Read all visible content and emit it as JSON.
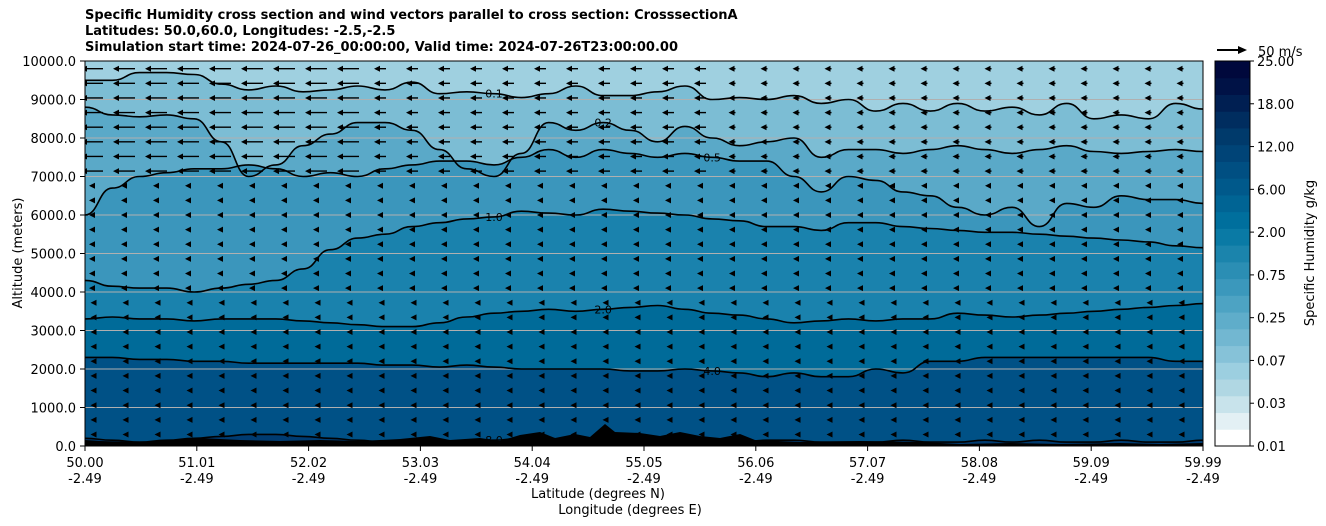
{
  "titles": [
    "Specific Humidity cross section and wind vectors parallel to cross section: CrosssectionA",
    "Latitudes: 50.0,60.0, Longitudes: -2.5,-2.5",
    "Simulation start time: 2024-07-26_00:00:00, Valid time: 2024-07-26T23:00:00.00"
  ],
  "chart_data": {
    "type": "heatmap",
    "title": "Specific Humidity cross section and wind vectors parallel to cross section: CrosssectionA",
    "ylabel": "Altitude (meters)",
    "xlabel_lat": "Latitude (degrees N)",
    "xlabel_lon": "Longitude (degrees E)",
    "ylim": [
      0,
      10000
    ],
    "y_ticks": [
      "0.0",
      "1000.0",
      "2000.0",
      "3000.0",
      "4000.0",
      "5000.0",
      "6000.0",
      "7000.0",
      "8000.0",
      "9000.0",
      "10000.0"
    ],
    "x_ticks_lat": [
      "50.00",
      "51.01",
      "52.02",
      "53.03",
      "54.04",
      "55.05",
      "56.06",
      "57.07",
      "58.08",
      "59.09",
      "59.99"
    ],
    "x_ticks_lon": [
      "-2.49",
      "-2.49",
      "-2.49",
      "-2.49",
      "-2.49",
      "-2.49",
      "-2.49",
      "-2.49",
      "-2.49",
      "-2.49",
      "-2.49"
    ],
    "grid": "horizontal",
    "colorbar": {
      "label": "Specific Humidity g/kg",
      "tick_labels": [
        "0.01",
        "0.03",
        "0.07",
        "0.25",
        "0.75",
        "2.00",
        "6.00",
        "12.00",
        "18.00",
        "25.00"
      ],
      "colors": [
        "#ffffff",
        "#e3f0f4",
        "#c8e3eb",
        "#b0d7e3",
        "#9ccfe0",
        "#86c2d8",
        "#72b7d1",
        "#5fadca",
        "#4da3c3",
        "#3b98bc",
        "#2b8eb4",
        "#1b84ac",
        "#0a7aa5",
        "#006f9d",
        "#006494",
        "#00598b",
        "#004f82",
        "#004477",
        "#003a6b",
        "#002d5f",
        "#001f52",
        "#001246",
        "#00083c"
      ]
    },
    "contours": [
      {
        "label": "0.1",
        "y": [
          9500,
          9500,
          9700,
          9700,
          9650,
          9400,
          9250,
          9350,
          9200,
          9250,
          9350,
          9250,
          9450,
          9150,
          9200,
          9150,
          9050,
          9150,
          9350,
          9100,
          9100,
          9200,
          9350,
          9000,
          9050,
          9000,
          9100,
          8900,
          9000,
          8700,
          8900,
          8700,
          8900,
          8700,
          8800,
          8600,
          8900,
          8500,
          8600,
          8500,
          8900,
          8750
        ]
      },
      {
        "label": "0.2",
        "y": [
          8800,
          8600,
          8550,
          8600,
          8500,
          7900,
          7000,
          7300,
          7800,
          8100,
          8400,
          8400,
          8200,
          7700,
          7200,
          7000,
          7600,
          8400,
          8200,
          8400,
          8200,
          7900,
          8300,
          8000,
          7800,
          7900,
          8000,
          7500,
          7700,
          7700,
          7600,
          7700,
          7800,
          7700,
          7600,
          7700,
          7800,
          7650,
          7600,
          7650,
          7700,
          7650
        ]
      },
      {
        "label": "0.5",
        "y": [
          6000,
          6700,
          7000,
          7100,
          7200,
          7200,
          7300,
          7200,
          7000,
          7100,
          7000,
          7200,
          7300,
          7400,
          7400,
          7300,
          7500,
          7700,
          7500,
          7700,
          7600,
          7500,
          7600,
          7500,
          7400,
          7400,
          7000,
          6600,
          7000,
          6900,
          6600,
          6500,
          6200,
          6000,
          6200,
          5700,
          6300,
          6200,
          6500,
          6400,
          6400,
          6300
        ]
      },
      {
        "label": "1.0",
        "y": [
          4300,
          4150,
          4100,
          4100,
          4000,
          4100,
          4200,
          4300,
          4600,
          5100,
          5400,
          5500,
          5700,
          5800,
          5900,
          5950,
          6100,
          6050,
          6000,
          6150,
          6100,
          6050,
          6000,
          5900,
          5850,
          5700,
          5700,
          5600,
          5800,
          5800,
          5700,
          5650,
          5600,
          5550,
          5550,
          5500,
          5450,
          5400,
          5350,
          5300,
          5200,
          5150
        ]
      },
      {
        "label": "2.0",
        "y": [
          3300,
          3350,
          3300,
          3300,
          3250,
          3300,
          3300,
          3300,
          3250,
          3200,
          3150,
          3100,
          3100,
          3200,
          3350,
          3450,
          3500,
          3550,
          3500,
          3550,
          3600,
          3650,
          3550,
          3450,
          3400,
          3300,
          3200,
          3250,
          3300,
          3250,
          3300,
          3300,
          3450,
          3400,
          3350,
          3400,
          3450,
          3500,
          3550,
          3600,
          3650,
          3700
        ]
      },
      {
        "label": "4.0",
        "y": [
          2300,
          2300,
          2250,
          2250,
          2200,
          2200,
          2150,
          2150,
          2150,
          2150,
          2150,
          2100,
          2100,
          2050,
          2100,
          2050,
          2000,
          2000,
          2000,
          2000,
          1950,
          1950,
          2000,
          1950,
          1900,
          1800,
          1900,
          1800,
          1800,
          2000,
          1900,
          2200,
          2200,
          2300,
          2300,
          2300,
          2300,
          2300,
          2300,
          2300,
          2200,
          2200
        ]
      },
      {
        "label": "8.0",
        "y": [
          200,
          150,
          100,
          150,
          200,
          250,
          300,
          300,
          250,
          200,
          150,
          100,
          150,
          100,
          150,
          150,
          200,
          200,
          100,
          150,
          150,
          100,
          150,
          150,
          100,
          150,
          150,
          100,
          100,
          100,
          150,
          100,
          100,
          150,
          100,
          150,
          100,
          100,
          150,
          100,
          100,
          150
        ]
      }
    ],
    "wind_reference": {
      "label": "50 m/s"
    },
    "terrain_note": ""
  }
}
